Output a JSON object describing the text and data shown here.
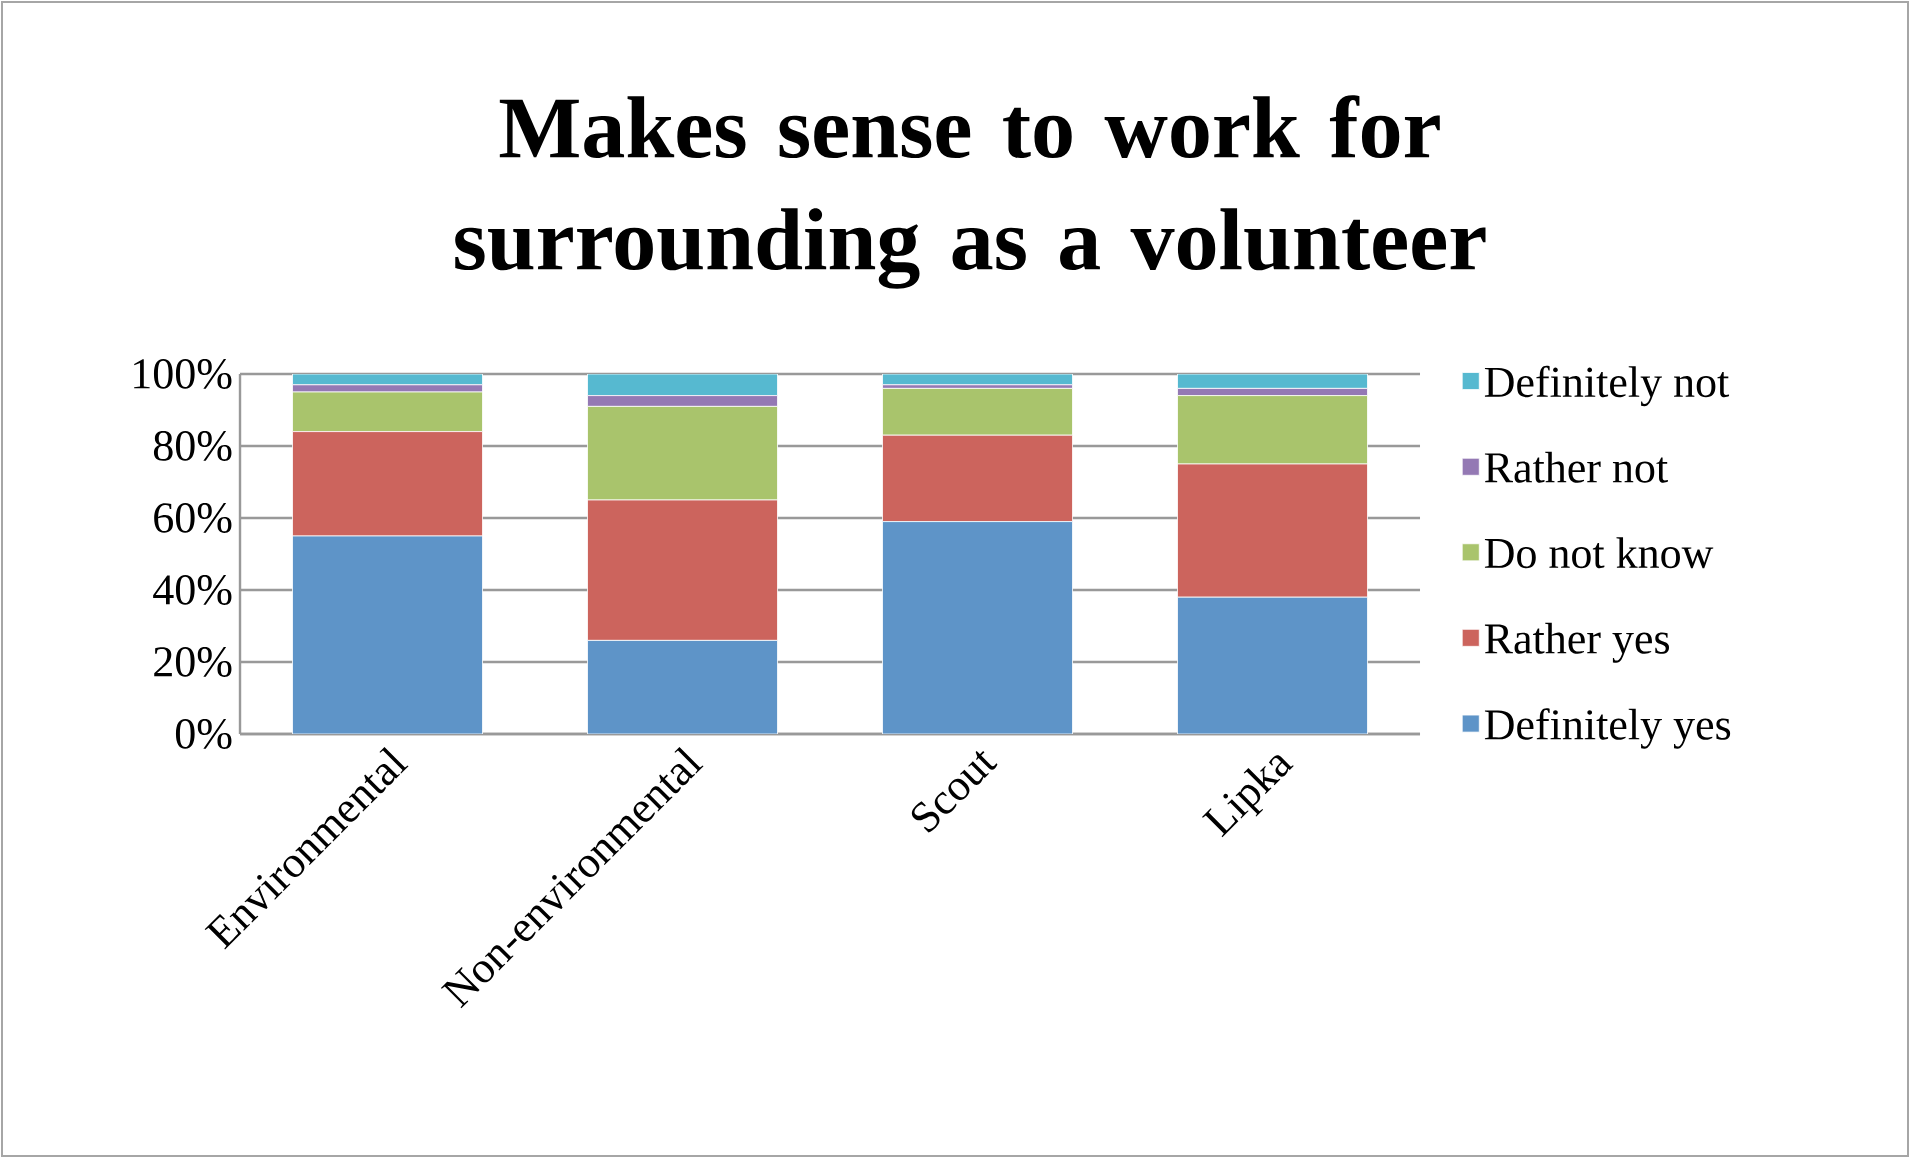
{
  "chart_data": {
    "type": "bar",
    "title": "Makes sense to work for surrounding as a volunteer",
    "categories": [
      "Environmental",
      "Non-environmental",
      "Scout",
      "Lipka"
    ],
    "stacked": true,
    "series": [
      {
        "name": "Definitely yes",
        "color": "#5e94c8",
        "values": [
          55,
          26,
          59,
          38
        ]
      },
      {
        "name": "Rather yes",
        "color": "#cc645d",
        "values": [
          29,
          39,
          24,
          37
        ]
      },
      {
        "name": "Do not know",
        "color": "#a9c46c",
        "values": [
          11,
          26,
          13,
          19
        ]
      },
      {
        "name": "Rather not",
        "color": "#9479b4",
        "values": [
          2,
          3,
          1,
          2
        ]
      },
      {
        "name": "Definitely not",
        "color": "#56b9d0",
        "values": [
          3,
          6,
          3,
          4
        ]
      }
    ],
    "ylim": [
      0,
      100
    ],
    "yticks": [
      {
        "value": 0,
        "label": "0%"
      },
      {
        "value": 20,
        "label": "20%"
      },
      {
        "value": 40,
        "label": "40%"
      },
      {
        "value": 60,
        "label": "60%"
      },
      {
        "value": 80,
        "label": "80%"
      },
      {
        "value": 100,
        "label": "100%"
      }
    ],
    "grid": "y",
    "legend": "right"
  }
}
